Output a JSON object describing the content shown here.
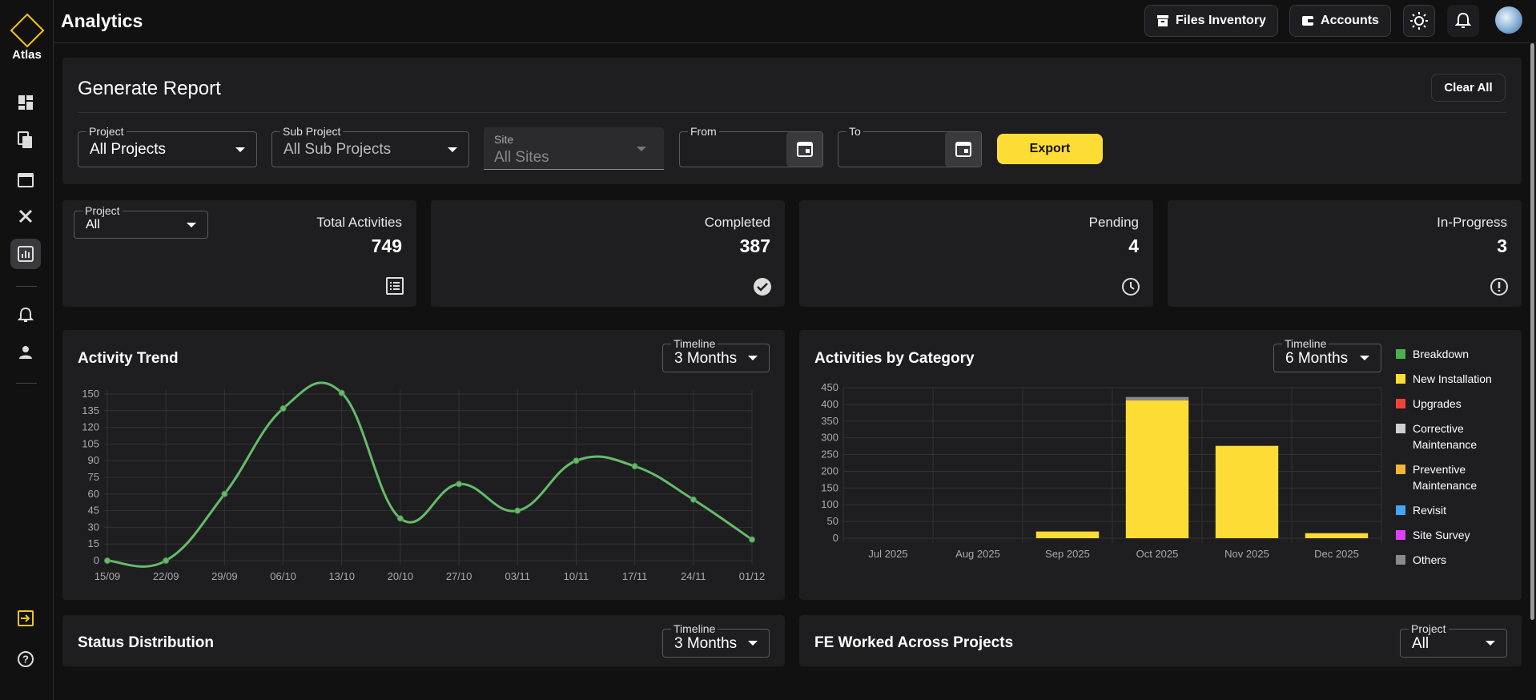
{
  "sidebar": {
    "logo": "Atlas"
  },
  "header": {
    "title": "Analytics",
    "buttons": [
      "Files Inventory",
      "Accounts"
    ]
  },
  "report": {
    "title": "Generate Report",
    "clear": "Clear All",
    "fields": [
      {
        "label": "Project",
        "value": "All Projects"
      },
      {
        "label": "Sub Project",
        "value": "All Sub Projects"
      },
      {
        "label": "Site",
        "value": "All Sites"
      },
      {
        "label": "From"
      },
      {
        "label": "To"
      }
    ],
    "export": "Export"
  },
  "stats": {
    "filter": {
      "label": "Project",
      "value": "All"
    },
    "cards": [
      {
        "label": "Total Activities",
        "value": 749
      },
      {
        "label": "Completed",
        "value": 387
      },
      {
        "label": "Pending",
        "value": 4
      },
      {
        "label": "In-Progress",
        "value": 3
      }
    ]
  },
  "chart_data": [
    {
      "type": "line",
      "title": "Activity Trend",
      "control": {
        "label": "Timeline",
        "value": "3 Months"
      },
      "categories": [
        "15/09",
        "22/09",
        "29/09",
        "06/10",
        "13/10",
        "20/10",
        "27/10",
        "03/11",
        "10/11",
        "17/11",
        "24/11",
        "01/12"
      ],
      "values": [
        0,
        0,
        60,
        137,
        151,
        38,
        69,
        45,
        90,
        85,
        55,
        19
      ],
      "color": "#66bb6a",
      "ylim": [
        0,
        150
      ],
      "yticks": [
        0,
        15,
        30,
        45,
        60,
        75,
        90,
        105,
        120,
        135,
        150
      ],
      "grid": true
    },
    {
      "type": "bar",
      "stacked": true,
      "title": "Activities by Category",
      "control": {
        "label": "Timeline",
        "value": "6 Months"
      },
      "categories": [
        "Jul 2025",
        "Aug 2025",
        "Sep 2025",
        "Oct 2025",
        "Nov 2025",
        "Dec 2025"
      ],
      "series": [
        {
          "name": "Breakdown",
          "color": "#4caf50",
          "values": [
            0,
            0,
            0,
            0,
            0,
            0
          ]
        },
        {
          "name": "New Installation",
          "color": "#fddd35",
          "values": [
            0,
            0,
            20,
            412,
            276,
            15
          ]
        },
        {
          "name": "Upgrades",
          "color": "#f44336",
          "values": [
            0,
            0,
            0,
            0,
            0,
            0
          ]
        },
        {
          "name": "Corrective Maintenance",
          "color": "#cfcfcf",
          "values": [
            0,
            0,
            0,
            0,
            0,
            0
          ]
        },
        {
          "name": "Preventive Maintenance",
          "color": "#f2b632",
          "values": [
            0,
            0,
            0,
            0,
            0,
            0
          ]
        },
        {
          "name": "Revisit",
          "color": "#42a5f5",
          "values": [
            0,
            0,
            0,
            0,
            0,
            0
          ]
        },
        {
          "name": "Site Survey",
          "color": "#e040fb",
          "values": [
            0,
            0,
            0,
            0,
            0,
            0
          ]
        },
        {
          "name": "Others",
          "color": "#8a8a8a",
          "values": [
            0,
            0,
            0,
            10,
            0,
            0
          ]
        }
      ],
      "ylim": [
        0,
        450
      ],
      "yticks": [
        0,
        50,
        100,
        150,
        200,
        250,
        300,
        350,
        400,
        450
      ],
      "grid": true,
      "legend": "right"
    }
  ],
  "bottom": [
    {
      "title": "Status Distribution",
      "control": {
        "label": "Timeline",
        "value": "3 Months"
      }
    },
    {
      "title": "FE Worked Across Projects",
      "control": {
        "label": "Project",
        "value": "All"
      }
    }
  ]
}
